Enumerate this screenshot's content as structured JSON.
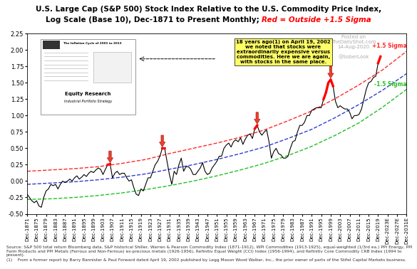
{
  "chart_data": {
    "type": "line",
    "title": "U.S. Large Cap (S&P 500) Stock Index Relative to the U.S. Commodity Price Index,",
    "subtitle": [
      "Log Scale (Base 10), Dec-1871 to Present Monthly;",
      "Red = Outside +1.5 Sigma"
    ],
    "callout": "18 years ago(1) on April 19, 2002\nwe noted that stocks were\nextraordinarily expensive versus\ncommodities. Here we are again,\nwith stocks in the same place.",
    "inset": {
      "title": "The Inflation Cycle of 2001 to 2013",
      "heading": "Equity Research",
      "subheading": "Industrial Portfolio Strategy"
    },
    "watermark": [
      "Posted on",
      "TheDailyShot.com",
      "14-Aug-2020"
    ],
    "handle": "@SoberLook",
    "source": "Source: S&P 500 total return Bloomberg data, S&P historical Shiller, Warren & Pearson Commodity Index (1871-1912), WPI Commodities (1913-1925), equal-weighted (1/3rd ea.) PPI Energy, PPI Farm Products and PPI Metals (Ferrous and Non-Ferrous) ex-precious metals (1926-1956), Refinitiv Equal Weight (CCI) Index (1956-1994), and Refinitiv Core Commodity CRB Index (1994 to present).",
    "footnote": "(1)    From a former report by Barry Bannister & Paul Forward dated April 19, 2002 published by Legg Mason Wood Walker, Inc., the prior owner of parts of the Stifel Capital Markets business.",
    "grid": false,
    "xlim": [
      1871,
      2031
    ],
    "xticks": [
      {
        "value": 1871,
        "label": "Dec-1871"
      },
      {
        "value": 1875,
        "label": "Dec-1875"
      },
      {
        "value": 1879,
        "label": "Dec-1879"
      },
      {
        "value": 1883,
        "label": "Dec-1883"
      },
      {
        "value": 1887,
        "label": "Dec-1887"
      },
      {
        "value": 1891,
        "label": "Dec-1891"
      },
      {
        "value": 1895,
        "label": "Dec-1895"
      },
      {
        "value": 1899,
        "label": "Dec-1899"
      },
      {
        "value": 1903,
        "label": "Dec-1903"
      },
      {
        "value": 1907,
        "label": "Dec-1907"
      },
      {
        "value": 1911,
        "label": "Dec-1911"
      },
      {
        "value": 1915,
        "label": "Dec-1915"
      },
      {
        "value": 1919,
        "label": "Dec-1919"
      },
      {
        "value": 1923,
        "label": "Dec-1923"
      },
      {
        "value": 1927,
        "label": "Dec-1927"
      },
      {
        "value": 1931,
        "label": "Dec-1931"
      },
      {
        "value": 1935,
        "label": "Dec-1935"
      },
      {
        "value": 1939,
        "label": "Dec-1939"
      },
      {
        "value": 1943,
        "label": "Dec-1943"
      },
      {
        "value": 1947,
        "label": "Dec-1947"
      },
      {
        "value": 1951,
        "label": "Dec-1951"
      },
      {
        "value": 1955,
        "label": "Dec-1955"
      },
      {
        "value": 1959,
        "label": "Dec-1959"
      },
      {
        "value": 1963,
        "label": "Dec-1963"
      },
      {
        "value": 1967,
        "label": "Dec-1967"
      },
      {
        "value": 1971,
        "label": "Dec-1971"
      },
      {
        "value": 1975,
        "label": "Dec-1975"
      },
      {
        "value": 1979,
        "label": "Dec-1979"
      },
      {
        "value": 1983,
        "label": "Dec-1983"
      },
      {
        "value": 1987,
        "label": "Dec-1987"
      },
      {
        "value": 1991,
        "label": "Dec-1991"
      },
      {
        "value": 1995,
        "label": "Dec-1995"
      },
      {
        "value": 1999,
        "label": "Dec-1999"
      },
      {
        "value": 2003,
        "label": "Dec-2003"
      },
      {
        "value": 2007,
        "label": "Dec-2007"
      },
      {
        "value": 2011,
        "label": "Dec-2011"
      },
      {
        "value": 2015,
        "label": "Dec-2015"
      },
      {
        "value": 2019,
        "label": "Dec-2019"
      },
      {
        "value": 2023,
        "label": "Dec-2023E"
      },
      {
        "value": 2027,
        "label": "Dec-2027E"
      },
      {
        "value": 2031,
        "label": "Dec-2031E"
      }
    ],
    "ylim": [
      -0.5,
      2.25
    ],
    "yticks": [
      {
        "value": -0.5,
        "label": "-0.50"
      },
      {
        "value": -0.25,
        "label": "-0.25"
      },
      {
        "value": 0,
        "label": "0.00"
      },
      {
        "value": 0.25,
        "label": "0.25"
      },
      {
        "value": 0.5,
        "label": "0.50"
      },
      {
        "value": 0.75,
        "label": "0.75"
      },
      {
        "value": 1,
        "label": "1.00"
      },
      {
        "value": 1.25,
        "label": "1.25"
      },
      {
        "value": 1.5,
        "label": "1.50"
      },
      {
        "value": 1.75,
        "label": "1.75"
      },
      {
        "value": 2,
        "label": "2.00"
      },
      {
        "value": 2.25,
        "label": "2.25"
      }
    ],
    "series": [
      {
        "color": "#000000",
        "line_style": "solid",
        "x": [
          1871,
          1872,
          1873,
          1874,
          1875,
          1876,
          1877,
          1878,
          1879,
          1880,
          1881,
          1882,
          1883,
          1884,
          1885,
          1886,
          1887,
          1888,
          1889,
          1890,
          1891,
          1892,
          1893,
          1894,
          1895,
          1896,
          1897,
          1898,
          1899,
          1900,
          1901,
          1902,
          1903,
          1904,
          1905,
          1906,
          1907,
          1908,
          1909,
          1910,
          1911,
          1912,
          1913,
          1914,
          1915,
          1916,
          1917,
          1918,
          1919,
          1920,
          1921,
          1922,
          1923,
          1924,
          1925,
          1926,
          1927,
          1928,
          1929,
          1930,
          1931,
          1932,
          1933,
          1934,
          1935,
          1936,
          1937,
          1938,
          1939,
          1940,
          1941,
          1942,
          1943,
          1944,
          1945,
          1946,
          1947,
          1948,
          1949,
          1950,
          1951,
          1952,
          1953,
          1954,
          1955,
          1956,
          1957,
          1958,
          1959,
          1960,
          1961,
          1962,
          1963,
          1964,
          1965,
          1966,
          1967,
          1968,
          1969,
          1970,
          1971,
          1972,
          1973,
          1974,
          1975,
          1976,
          1977,
          1978,
          1979,
          1980,
          1981,
          1982,
          1983,
          1984,
          1985,
          1986,
          1987,
          1988,
          1989,
          1990,
          1991,
          1992,
          1993,
          1994,
          1995,
          1996,
          1997,
          1998,
          1999,
          2000,
          2001,
          2002,
          2003,
          2004,
          2005,
          2006,
          2007,
          2008,
          2009,
          2010,
          2011,
          2012,
          2013,
          2014,
          2015,
          2016,
          2017,
          2018,
          2019,
          2020
        ],
        "values": [
          -0.2,
          -0.25,
          -0.3,
          -0.33,
          -0.3,
          -0.38,
          -0.4,
          -0.25,
          -0.15,
          -0.12,
          -0.05,
          -0.07,
          -0.05,
          -0.12,
          -0.05,
          0.0,
          -0.02,
          0.0,
          0.03,
          0.0,
          0.05,
          0.08,
          0.03,
          0.06,
          0.1,
          0.07,
          0.12,
          0.15,
          0.13,
          0.17,
          0.2,
          0.18,
          0.1,
          0.18,
          0.25,
          0.26,
          0.05,
          0.12,
          0.15,
          0.1,
          0.12,
          0.12,
          0.05,
          0.0,
          0.02,
          -0.1,
          -0.2,
          -0.22,
          -0.12,
          -0.15,
          -0.05,
          0.05,
          0.05,
          0.15,
          0.25,
          0.3,
          0.38,
          0.5,
          0.5,
          0.3,
          0.1,
          -0.05,
          0.15,
          0.1,
          0.25,
          0.35,
          0.15,
          0.22,
          0.22,
          0.18,
          0.1,
          0.1,
          0.15,
          0.2,
          0.28,
          0.15,
          0.1,
          0.12,
          0.2,
          0.25,
          0.3,
          0.38,
          0.38,
          0.5,
          0.55,
          0.58,
          0.52,
          0.6,
          0.63,
          0.6,
          0.66,
          0.56,
          0.64,
          0.7,
          0.72,
          0.65,
          0.8,
          0.85,
          0.75,
          0.7,
          0.75,
          0.78,
          0.6,
          0.35,
          0.45,
          0.5,
          0.42,
          0.4,
          0.35,
          0.35,
          0.38,
          0.5,
          0.6,
          0.62,
          0.75,
          0.85,
          0.85,
          0.9,
          1.0,
          1.0,
          1.08,
          1.1,
          1.12,
          1.12,
          1.12,
          1.25,
          1.35,
          1.5,
          1.55,
          1.45,
          1.22,
          1.12,
          1.15,
          1.12,
          1.1,
          1.1,
          1.05,
          0.95,
          1.0,
          1.0,
          1.02,
          1.1,
          1.25,
          1.4,
          1.5,
          1.52,
          1.58,
          1.6,
          1.8,
          1.9
        ]
      },
      {
        "color": "#ff0000",
        "line_style": "solid",
        "x": [
          1905,
          1906,
          1907,
          1928,
          1929,
          1930,
          1967,
          1968,
          1969,
          1996,
          1997,
          1998,
          1999,
          2000,
          2001,
          2019,
          2020
        ],
        "values": [
          0.25,
          0.26,
          null,
          0.5,
          0.5,
          null,
          0.8,
          0.85,
          null,
          1.25,
          1.35,
          1.5,
          1.55,
          1.45,
          null,
          1.8,
          1.9
        ]
      },
      {
        "name": "+1.5 Sigma",
        "color": "#ff2a2a",
        "line_style": "dashed",
        "x": [
          1871,
          1881,
          1891,
          1901,
          1911,
          1921,
          1931,
          1941,
          1951,
          1961,
          1971,
          1981,
          1991,
          2001,
          2011,
          2021,
          2031
        ],
        "values": [
          0.15,
          0.17,
          0.19,
          0.22,
          0.27,
          0.33,
          0.42,
          0.5,
          0.58,
          0.67,
          0.78,
          0.92,
          1.07,
          1.26,
          1.47,
          1.7,
          1.98
        ]
      },
      {
        "color": "#2f3fd0",
        "line_style": "dashed",
        "x": [
          1871,
          1881,
          1891,
          1901,
          1911,
          1921,
          1931,
          1941,
          1951,
          1961,
          1971,
          1981,
          1991,
          2001,
          2011,
          2021,
          2031
        ],
        "values": [
          -0.05,
          -0.03,
          -0.01,
          0.02,
          0.06,
          0.11,
          0.18,
          0.25,
          0.33,
          0.42,
          0.52,
          0.65,
          0.79,
          0.97,
          1.17,
          1.39,
          1.64
        ]
      },
      {
        "name": "-1.5 Sigma",
        "color": "#22c022",
        "line_style": "dashed",
        "x": [
          1871,
          1881,
          1891,
          1901,
          1911,
          1921,
          1931,
          1941,
          1951,
          1961,
          1971,
          1981,
          1991,
          2001,
          2011,
          2021,
          2031
        ],
        "values": [
          -0.28,
          -0.27,
          -0.25,
          -0.22,
          -0.18,
          -0.13,
          -0.07,
          0.0,
          0.08,
          0.17,
          0.27,
          0.39,
          0.53,
          0.7,
          0.89,
          1.13,
          1.4
        ]
      }
    ]
  }
}
